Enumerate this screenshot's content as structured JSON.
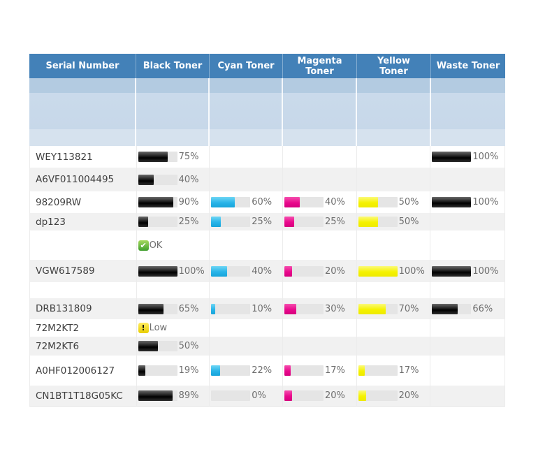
{
  "table": {
    "columns": [
      {
        "key": "serial",
        "label": "Serial Number"
      },
      {
        "key": "black",
        "label": "Black Toner",
        "color": "#1c1c1c"
      },
      {
        "key": "cyan",
        "label": "Cyan Toner",
        "color": "#29b4e8"
      },
      {
        "key": "magenta",
        "label": "Magenta Toner",
        "color": "#e9098c"
      },
      {
        "key": "yellow",
        "label": "Yellow Toner",
        "color": "#f5f200"
      },
      {
        "key": "waste",
        "label": "Waste Toner",
        "color": "#1c1c1c"
      }
    ],
    "rows": [
      {
        "serial": "WEY113821",
        "black": {
          "pct": 75
        },
        "waste": {
          "pct": 100
        }
      },
      {
        "serial": "A6VF011004495",
        "black": {
          "pct": 40
        }
      },
      {
        "serial": "98209RW",
        "black": {
          "pct": 90
        },
        "cyan": {
          "pct": 60
        },
        "magenta": {
          "pct": 40
        },
        "yellow": {
          "pct": 50
        },
        "waste": {
          "pct": 100
        }
      },
      {
        "serial": "dp123",
        "black": {
          "pct": 25
        },
        "cyan": {
          "pct": 25
        },
        "magenta": {
          "pct": 25
        },
        "yellow": {
          "pct": 50
        }
      },
      {
        "serial": "",
        "black": {
          "status": "OK"
        }
      },
      {
        "serial": "VGW617589",
        "black": {
          "pct": 100
        },
        "cyan": {
          "pct": 40
        },
        "magenta": {
          "pct": 20
        },
        "yellow": {
          "pct": 100
        },
        "waste": {
          "pct": 100
        }
      },
      {
        "serial": ""
      },
      {
        "serial": "DRB131809",
        "black": {
          "pct": 65
        },
        "cyan": {
          "pct": 10
        },
        "magenta": {
          "pct": 30
        },
        "yellow": {
          "pct": 70
        },
        "waste": {
          "pct": 66
        }
      },
      {
        "serial": "72M2KT2",
        "black": {
          "status": "Low"
        }
      },
      {
        "serial": "72M2KT6",
        "black": {
          "pct": 50
        }
      },
      {
        "serial": "A0HF012006127",
        "black": {
          "pct": 19
        },
        "cyan": {
          "pct": 22
        },
        "magenta": {
          "pct": 17
        },
        "yellow": {
          "pct": 17
        }
      },
      {
        "serial": "CN1BT1T18G05KC",
        "black": {
          "pct": 89
        },
        "cyan": {
          "pct": 0
        },
        "magenta": {
          "pct": 20
        },
        "yellow": {
          "pct": 20
        }
      }
    ],
    "status": {
      "ok_label": "OK",
      "low_label": "Low",
      "ok_glyph": "✔",
      "low_glyph": "!"
    },
    "percent_suffix": "%"
  },
  "colors": {
    "header_bg": "#4381b8",
    "header_text": "#ffffff",
    "band1": "#b3cbe1",
    "band2": "#c7d8e9",
    "band3": "#d6e2ee",
    "row_alt": "#f1f1f1",
    "track": "#e5e5e5",
    "pct_text": "#6e6e6e",
    "serial_text": "#404040",
    "ok_green": "#3f9e2d",
    "low_yellow": "#e9ce00",
    "cyan_toner": "#29b4e8",
    "magenta_toner": "#e9098c",
    "yellow_toner": "#f5f200",
    "black_toner": "#1c1c1c"
  }
}
